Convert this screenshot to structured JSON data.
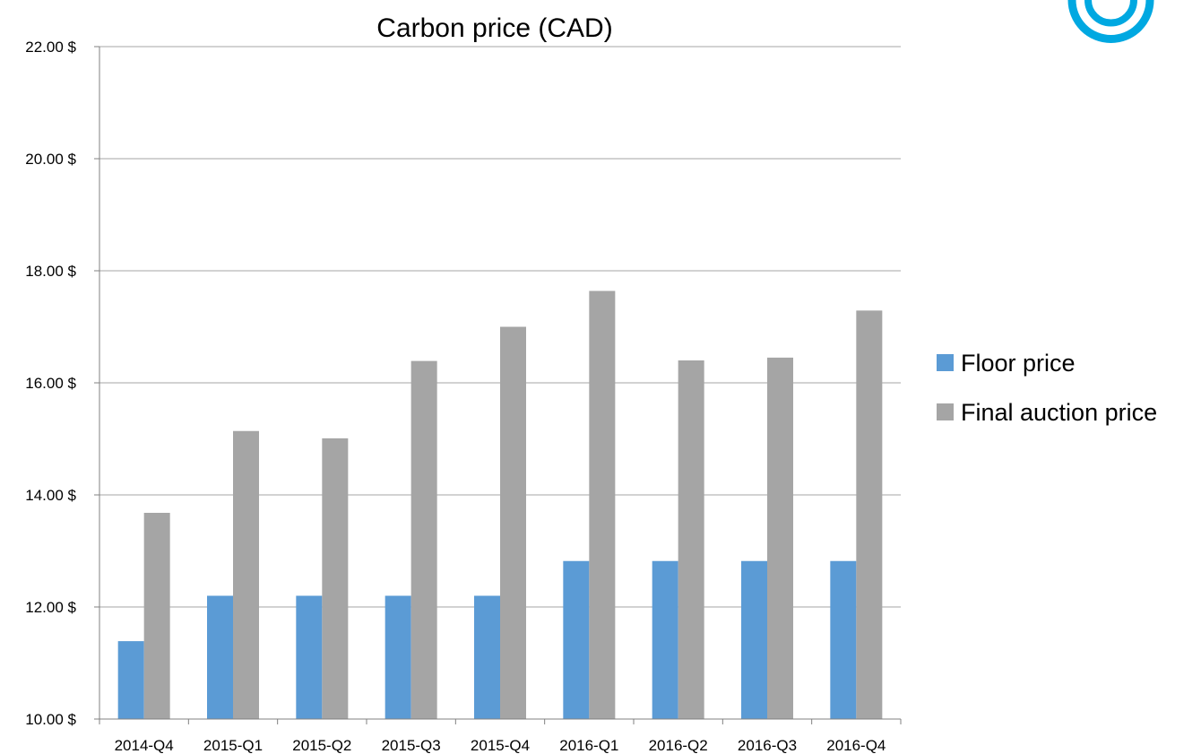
{
  "logo": {
    "color": "#00a8e1"
  },
  "chart_data": {
    "type": "bar",
    "title": "Carbon price (CAD)",
    "xlabel": "",
    "ylabel": "",
    "categories": [
      "2014-Q4",
      "2015-Q1",
      "2015-Q2",
      "2015-Q3",
      "2015-Q4",
      "2016-Q1",
      "2016-Q2",
      "2016-Q3",
      "2016-Q4"
    ],
    "series": [
      {
        "name": "Floor price",
        "color": "#5b9bd5",
        "values": [
          11.39,
          12.2,
          12.2,
          12.2,
          12.2,
          12.82,
          12.82,
          12.82,
          12.82
        ]
      },
      {
        "name": "Final auction price",
        "color": "#a5a5a5",
        "values": [
          13.68,
          15.14,
          15.01,
          16.39,
          17.0,
          17.64,
          16.4,
          16.45,
          17.29
        ]
      }
    ],
    "ylim": [
      10,
      22
    ],
    "yticks": [
      10,
      12,
      14,
      16,
      18,
      20,
      22
    ],
    "ytick_labels": [
      "10.00 $",
      "12.00 $",
      "14.00 $",
      "16.00 $",
      "18.00 $",
      "20.00 $",
      "22.00 $"
    ],
    "grid": true,
    "legend_position": "right"
  }
}
